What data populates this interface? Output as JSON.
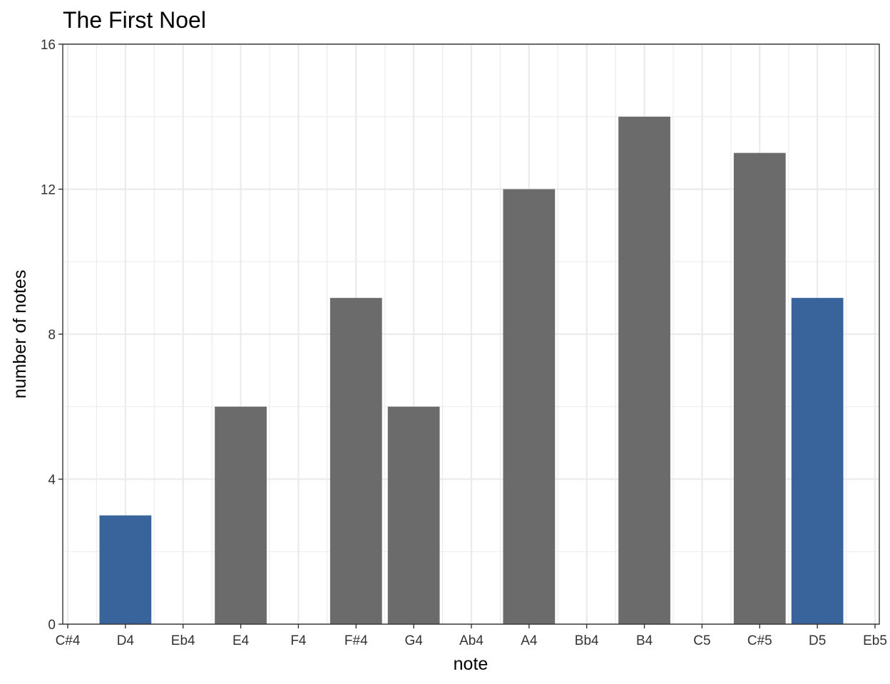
{
  "chart_data": {
    "type": "bar",
    "title": "The First Noel",
    "xlabel": "note",
    "ylabel": "number of notes",
    "categories": [
      "C#4",
      "D4",
      "Eb4",
      "E4",
      "F4",
      "F#4",
      "G4",
      "Ab4",
      "A4",
      "Bb4",
      "B4",
      "C5",
      "C#5",
      "D5",
      "Eb5"
    ],
    "values": [
      0,
      3,
      0,
      6,
      0,
      9,
      6,
      0,
      12,
      0,
      14,
      0,
      13,
      9,
      0
    ],
    "highlight": [
      false,
      true,
      false,
      false,
      false,
      false,
      false,
      false,
      false,
      false,
      false,
      false,
      false,
      true,
      false
    ],
    "ylim": [
      0,
      16
    ],
    "yticks": [
      0,
      4,
      8,
      12,
      16
    ],
    "grid": true,
    "legend": "none",
    "colors": {
      "default": "#6b6b6b",
      "highlight": "#38649b"
    }
  }
}
